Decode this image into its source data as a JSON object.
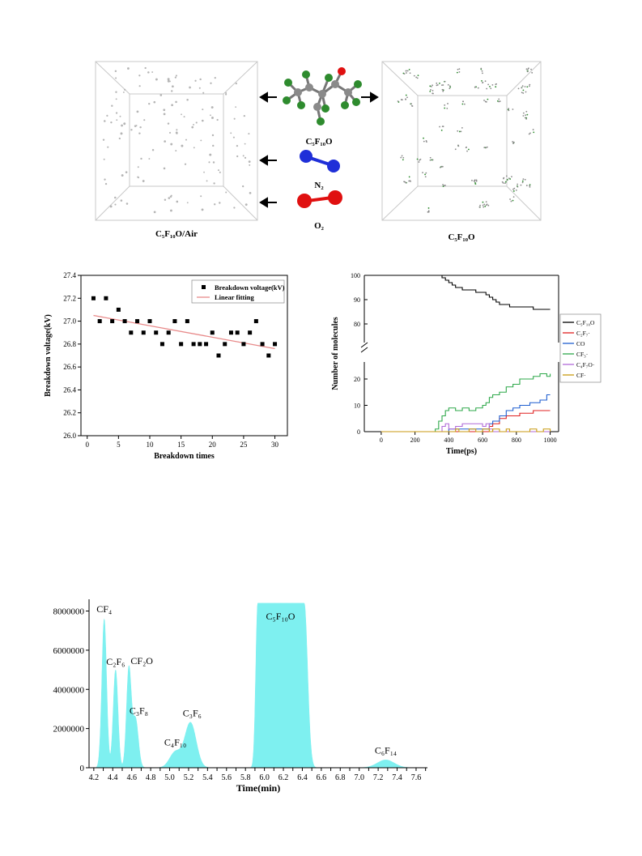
{
  "figure1": {
    "left_caption": "C₅F₁₀O/Air",
    "right_caption": "C₅F₁₀O",
    "molecules": [
      {
        "name": "C₅F₁₀O"
      },
      {
        "name": "N₂"
      },
      {
        "name": "O₂"
      }
    ],
    "colors": {
      "carbon": "#8a8a8a",
      "fluorine": "#2e8b2e",
      "oxygen": "#e01010",
      "nitrogen": "#1f2fd8"
    }
  },
  "chart_data": [
    {
      "type": "scatter",
      "xlabel": "Breakdown times",
      "ylabel": "Breakdown voltage(kV)",
      "xlim": [
        -1,
        32
      ],
      "ylim": [
        26.0,
        27.4
      ],
      "xticks": [
        0,
        5,
        10,
        15,
        20,
        25,
        30
      ],
      "yticks": [
        26.0,
        26.2,
        26.4,
        26.6,
        26.8,
        27.0,
        27.2,
        27.4
      ],
      "legend_position": "top-right",
      "series": [
        {
          "name": "Breakdown voltage(kV)",
          "marker": "square",
          "color": "#000000",
          "x": [
            1,
            2,
            3,
            4,
            5,
            6,
            7,
            8,
            9,
            10,
            11,
            12,
            13,
            14,
            15,
            16,
            17,
            18,
            19,
            20,
            21,
            22,
            23,
            24,
            25,
            26,
            27,
            28,
            29,
            30
          ],
          "y": [
            27.2,
            27.0,
            27.2,
            27.0,
            27.1,
            27.0,
            26.9,
            27.0,
            26.9,
            27.0,
            26.9,
            26.8,
            26.9,
            27.0,
            26.8,
            27.0,
            26.8,
            26.8,
            26.8,
            26.9,
            26.7,
            26.8,
            26.9,
            26.9,
            26.8,
            26.9,
            27.0,
            26.8,
            26.7,
            26.8
          ]
        },
        {
          "name": "Linear fitting",
          "type": "line",
          "color": "#e88a8a",
          "x": [
            1,
            30
          ],
          "y": [
            27.05,
            26.76
          ]
        }
      ]
    },
    {
      "type": "line",
      "xlabel": "Time(ps)",
      "ylabel": "Number of molecules",
      "xlim": [
        -100,
        1050
      ],
      "xticks": [
        0,
        200,
        400,
        600,
        800,
        1000
      ],
      "yticks_upper": [
        80,
        90,
        100
      ],
      "yticks_lower": [
        0,
        10,
        20
      ],
      "axis_break": true,
      "legend_position": "right",
      "series": [
        {
          "name": "C₅F₁₀O",
          "color": "#000000",
          "x": [
            0,
            340,
            360,
            380,
            400,
            420,
            440,
            460,
            480,
            520,
            560,
            580,
            620,
            640,
            660,
            680,
            700,
            720,
            760,
            800,
            900,
            1000
          ],
          "y": [
            100,
            100,
            99,
            98,
            97,
            96,
            95,
            95,
            94,
            94,
            93,
            93,
            92,
            91,
            90,
            89,
            88,
            88,
            87,
            87,
            86,
            86
          ]
        },
        {
          "name": "C₂F₇·",
          "color": "#e02020",
          "x": [
            0,
            620,
            640,
            660,
            700,
            740,
            780,
            820,
            900,
            1000
          ],
          "y": [
            0,
            0,
            2,
            3,
            5,
            6,
            6,
            7,
            8,
            8
          ]
        },
        {
          "name": "CO",
          "color": "#1f5fd0",
          "x": [
            0,
            380,
            400,
            620,
            640,
            660,
            700,
            740,
            780,
            820,
            880,
            940,
            980,
            1000
          ],
          "y": [
            0,
            0,
            1,
            1,
            3,
            4,
            6,
            8,
            9,
            10,
            11,
            12,
            14,
            14
          ]
        },
        {
          "name": "CF₃·",
          "color": "#2ea84a",
          "x": [
            0,
            300,
            320,
            340,
            360,
            380,
            400,
            440,
            480,
            520,
            560,
            600,
            620,
            640,
            660,
            700,
            740,
            780,
            820,
            860,
            900,
            940,
            980,
            1000
          ],
          "y": [
            0,
            0,
            1,
            4,
            6,
            8,
            9,
            8,
            9,
            8,
            9,
            10,
            11,
            13,
            14,
            15,
            17,
            18,
            20,
            20,
            21,
            22,
            21,
            22
          ]
        },
        {
          "name": "C₄F₇O·",
          "color": "#b06ad8",
          "x": [
            0,
            340,
            360,
            380,
            400,
            440,
            480,
            560,
            600,
            620,
            640,
            660,
            700,
            1000
          ],
          "y": [
            0,
            0,
            2,
            3,
            1,
            2,
            3,
            3,
            2,
            3,
            1,
            0,
            0,
            0
          ]
        },
        {
          "name": "CF·",
          "color": "#c89a10",
          "x": [
            0,
            420,
            440,
            460,
            520,
            560,
            600,
            640,
            660,
            700,
            740,
            760,
            800,
            880,
            920,
            960,
            1000
          ],
          "y": [
            0,
            0,
            1,
            0,
            1,
            0,
            1,
            0,
            1,
            0,
            1,
            0,
            0,
            1,
            0,
            1,
            0
          ]
        }
      ]
    },
    {
      "type": "area",
      "xlabel": "Time(min)",
      "xlim": [
        4.15,
        7.72
      ],
      "ylim": [
        0,
        8600000
      ],
      "xticks": [
        4.2,
        4.3,
        4.4,
        4.5,
        4.6,
        4.7,
        4.8,
        4.9,
        5.0,
        5.1,
        5.2,
        5.3,
        5.4,
        5.5,
        5.6,
        5.7,
        5.8,
        5.9,
        6.0,
        6.1,
        6.2,
        6.3,
        6.4,
        6.5,
        6.6,
        6.7,
        6.8,
        6.9,
        7.0,
        7.1,
        7.2,
        7.3,
        7.4,
        7.5,
        7.6,
        7.7
      ],
      "xtick_labels": [
        "4.2",
        "4.4",
        "4.6",
        "4.8",
        "5.0",
        "5.2",
        "5.4",
        "5.6",
        "5.8",
        "6.0",
        "6.2",
        "6.4",
        "6.6",
        "6.8",
        "7.0",
        "7.2",
        "7.4",
        "7.6"
      ],
      "yticks": [
        0,
        2000000,
        4000000,
        6000000,
        8000000
      ],
      "fill_color": "#7ef0f0",
      "peaks": [
        {
          "label": "CF₄",
          "x": 4.31,
          "height": 7600000,
          "width": 0.025
        },
        {
          "label": "C₂F₆",
          "x": 4.43,
          "height": 5000000,
          "width": 0.025
        },
        {
          "label": "CF₂O",
          "x": 4.57,
          "height": 5050000,
          "width": 0.025
        },
        {
          "label": "C₃F₈",
          "x": 4.64,
          "height": 2500000,
          "width": 0.03
        },
        {
          "label": "C₄F₁₀",
          "x": 5.06,
          "height": 800000,
          "width": 0.06
        },
        {
          "label": "C₃F₆",
          "x": 5.22,
          "height": 2300000,
          "width": 0.06
        },
        {
          "label": "C₅F₁₀O",
          "x": 6.17,
          "height": 8400000,
          "plateau": [
            5.93,
            6.42
          ]
        },
        {
          "label": "C₆F₁₄",
          "x": 7.28,
          "height": 400000,
          "width": 0.09
        }
      ]
    }
  ]
}
